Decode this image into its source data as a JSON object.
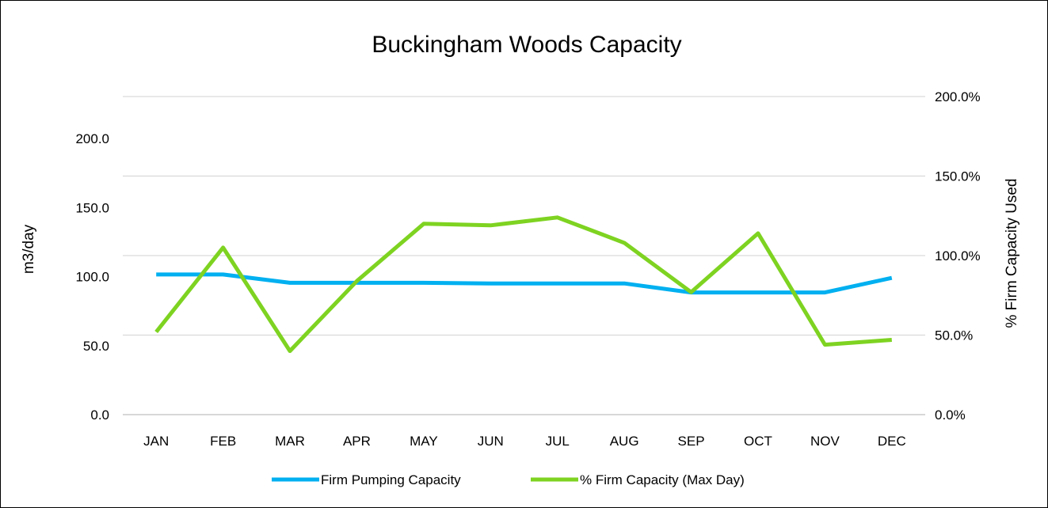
{
  "chart_data": {
    "type": "line",
    "title": "Buckingham Woods Capacity",
    "categories": [
      "JAN",
      "FEB",
      "MAR",
      "APR",
      "MAY",
      "JUN",
      "JUL",
      "AUG",
      "SEP",
      "OCT",
      "NOV",
      "DEC"
    ],
    "y_left": {
      "label": "m3/day",
      "range": [
        0,
        200
      ],
      "ticks": [
        "0.0",
        "50.0",
        "100.0",
        "150.0",
        "200.0"
      ]
    },
    "y_right": {
      "label": "% Firm Capacity Used",
      "range": [
        0,
        2.0
      ],
      "ticks": [
        "0.0%",
        "50.0%",
        "100.0%",
        "150.0%",
        "200.0%"
      ]
    },
    "grid": true,
    "legend_position": "bottom",
    "series": [
      {
        "name": "Firm Pumping Capacity",
        "axis": "left",
        "color": "#00b0f0",
        "values": [
          101.5,
          101.5,
          95.5,
          95.5,
          95.5,
          95.0,
          95.0,
          95.0,
          88.5,
          88.5,
          88.5,
          99.0
        ]
      },
      {
        "name": "% Firm Capacity (Max Day)",
        "axis": "right",
        "color": "#7ed321",
        "values": [
          0.52,
          1.05,
          0.4,
          0.84,
          1.2,
          1.19,
          1.24,
          1.08,
          0.77,
          1.14,
          0.44,
          0.47
        ]
      }
    ]
  }
}
